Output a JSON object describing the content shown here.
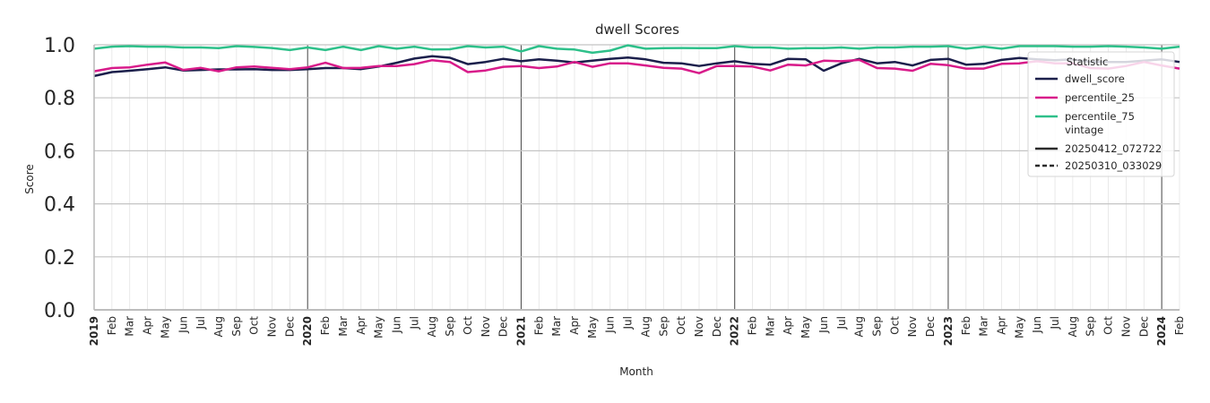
{
  "chart_data": {
    "type": "line",
    "title": "dwell Scores",
    "xlabel": "Month",
    "ylabel": "Score",
    "ylim": [
      0.0,
      1.0
    ],
    "yticks": [
      "0.0",
      "0.2",
      "0.4",
      "0.6",
      "0.8",
      "1.0"
    ],
    "x_start": "2019-01",
    "categories": [
      "2019",
      "Feb",
      "Mar",
      "Apr",
      "May",
      "Jun",
      "Jul",
      "Aug",
      "Sep",
      "Oct",
      "Nov",
      "Dec",
      "2020",
      "Feb",
      "Mar",
      "Apr",
      "May",
      "Jun",
      "Jul",
      "Aug",
      "Sep",
      "Oct",
      "Nov",
      "Dec",
      "2021",
      "Feb",
      "Mar",
      "Apr",
      "May",
      "Jun",
      "Jul",
      "Aug",
      "Sep",
      "Oct",
      "Nov",
      "Dec",
      "2022",
      "Feb",
      "Mar",
      "Apr",
      "May",
      "Jun",
      "Jul",
      "Aug",
      "Sep",
      "Oct",
      "Nov",
      "Dec",
      "2023",
      "Feb",
      "Mar",
      "Apr",
      "May",
      "Jun",
      "Jul",
      "Aug",
      "Sep",
      "Oct",
      "Nov",
      "Dec",
      "2024",
      "Feb"
    ],
    "grid": true,
    "legend_position": "top-right",
    "legend": {
      "title": "Statistic",
      "entries": [
        "dwell_score",
        "percentile_25",
        "percentile_75"
      ],
      "vintage_title": "vintage",
      "vintages": [
        {
          "label": "20250412_072722",
          "style": "solid"
        },
        {
          "label": "20250310_033029",
          "style": "dashed"
        }
      ]
    },
    "series": [
      {
        "name": "dwell_score",
        "color": "#1b1f4b",
        "style": "solid",
        "values": [
          0.882,
          0.897,
          0.902,
          0.908,
          0.915,
          0.903,
          0.905,
          0.907,
          0.907,
          0.908,
          0.905,
          0.905,
          0.908,
          0.912,
          0.912,
          0.908,
          0.918,
          0.932,
          0.948,
          0.957,
          0.951,
          0.927,
          0.935,
          0.947,
          0.938,
          0.945,
          0.94,
          0.933,
          0.94,
          0.947,
          0.952,
          0.945,
          0.932,
          0.93,
          0.92,
          0.93,
          0.938,
          0.928,
          0.925,
          0.947,
          0.945,
          0.902,
          0.93,
          0.947,
          0.93,
          0.935,
          0.922,
          0.943,
          0.947,
          0.925,
          0.928,
          0.943,
          0.95,
          0.945,
          0.942,
          0.945,
          0.935,
          0.935,
          0.935,
          0.94,
          0.945,
          0.935
        ]
      },
      {
        "name": "percentile_25",
        "color": "#d81b8a",
        "style": "solid",
        "values": [
          0.9,
          0.912,
          0.915,
          0.925,
          0.933,
          0.905,
          0.913,
          0.9,
          0.915,
          0.918,
          0.913,
          0.908,
          0.915,
          0.932,
          0.912,
          0.913,
          0.92,
          0.92,
          0.927,
          0.942,
          0.935,
          0.897,
          0.903,
          0.917,
          0.92,
          0.912,
          0.918,
          0.935,
          0.917,
          0.93,
          0.93,
          0.922,
          0.913,
          0.91,
          0.893,
          0.92,
          0.92,
          0.918,
          0.903,
          0.925,
          0.922,
          0.94,
          0.938,
          0.943,
          0.912,
          0.91,
          0.902,
          0.928,
          0.923,
          0.91,
          0.91,
          0.928,
          0.93,
          0.938,
          0.93,
          0.93,
          0.912,
          0.91,
          0.92,
          0.935,
          0.922,
          0.91
        ]
      },
      {
        "name": "percentile_75",
        "color": "#2ec08a",
        "style": "solid",
        "values": [
          0.985,
          0.993,
          0.995,
          0.993,
          0.993,
          0.99,
          0.99,
          0.987,
          0.995,
          0.992,
          0.988,
          0.98,
          0.99,
          0.98,
          0.993,
          0.98,
          0.995,
          0.985,
          0.993,
          0.982,
          0.983,
          0.995,
          0.99,
          0.993,
          0.975,
          0.995,
          0.985,
          0.982,
          0.97,
          0.978,
          0.998,
          0.985,
          0.987,
          0.988,
          0.987,
          0.987,
          0.995,
          0.99,
          0.99,
          0.985,
          0.987,
          0.987,
          0.99,
          0.985,
          0.99,
          0.99,
          0.993,
          0.993,
          0.995,
          0.985,
          0.993,
          0.985,
          0.995,
          0.995,
          0.995,
          0.993,
          0.993,
          0.995,
          0.993,
          0.99,
          0.985,
          0.993
        ]
      }
    ]
  }
}
